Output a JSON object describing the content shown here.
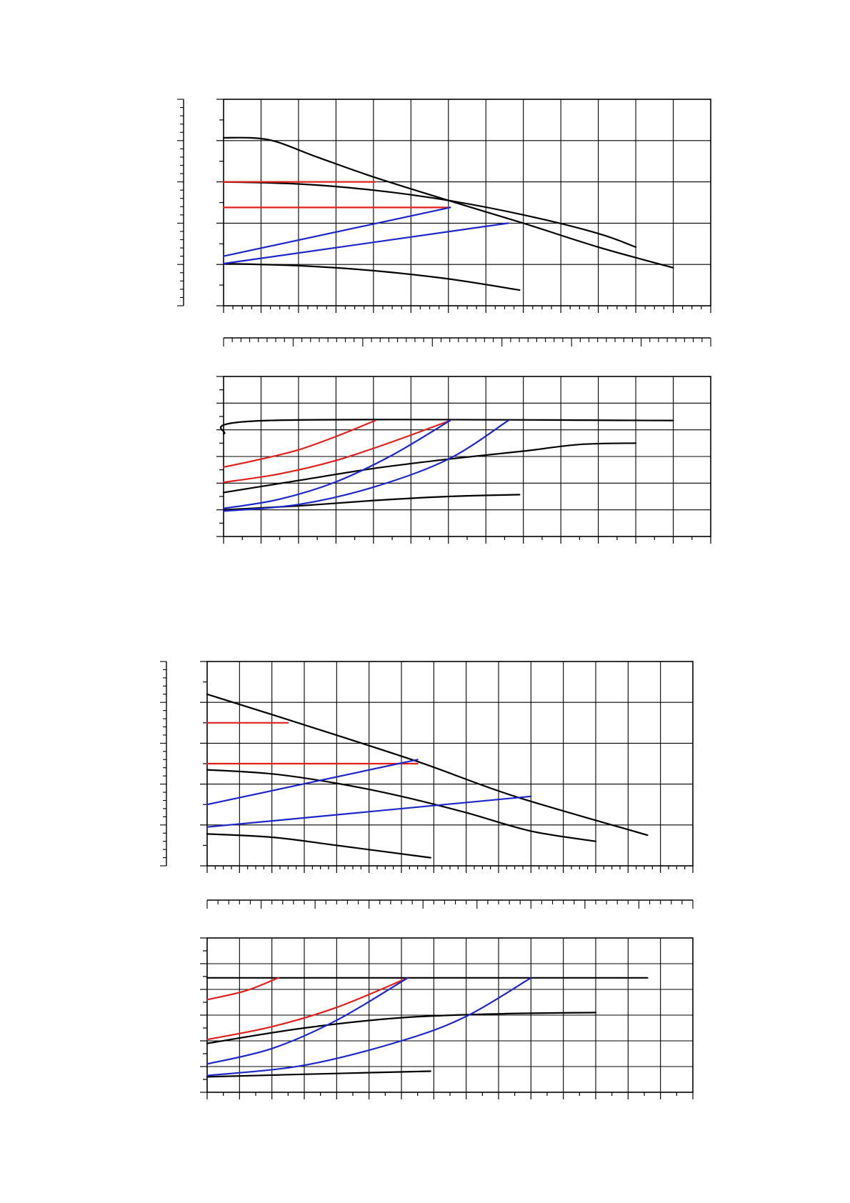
{
  "page": {
    "background": "#ffffff"
  },
  "colors": {
    "grid": "#000000",
    "red": "#e0201c",
    "blue": "#1c26c8",
    "black": "#000000"
  },
  "chart_data": [
    {
      "type": "line",
      "title": "",
      "xlim": [
        0,
        13
      ],
      "ylim": [
        -1,
        4
      ],
      "grid": true,
      "series": [
        {
          "color": "black",
          "points": [
            [
              0,
              3.07
            ],
            [
              1.2,
              3.02
            ],
            [
              2.5,
              2.6
            ],
            [
              4,
              2.12
            ],
            [
              6,
              1.55
            ],
            [
              8,
              1
            ],
            [
              10,
              0.42
            ],
            [
              12,
              -0.08
            ]
          ]
        },
        {
          "color": "black",
          "points": [
            [
              0,
              2.0
            ],
            [
              2,
              1.95
            ],
            [
              4,
              1.8
            ],
            [
              6,
              1.55
            ],
            [
              8,
              1.2
            ],
            [
              10,
              0.75
            ],
            [
              11,
              0.42
            ]
          ]
        },
        {
          "color": "black",
          "points": [
            [
              0,
              0.02
            ],
            [
              2,
              -0.03
            ],
            [
              4,
              -0.15
            ],
            [
              6,
              -0.35
            ],
            [
              7.9,
              -0.62
            ]
          ]
        },
        {
          "color": "red",
          "points": [
            [
              0,
              2.0
            ],
            [
              4.05,
              2.0
            ]
          ]
        },
        {
          "color": "red",
          "points": [
            [
              0,
              1.38
            ],
            [
              6.05,
              1.38
            ]
          ]
        },
        {
          "color": "blue",
          "points": [
            [
              0,
              0.2
            ],
            [
              6.05,
              1.38
            ]
          ]
        },
        {
          "color": "blue",
          "points": [
            [
              0,
              0.02
            ],
            [
              7.6,
              1.0
            ]
          ]
        }
      ]
    },
    {
      "type": "line",
      "title": "",
      "xlim": [
        0,
        13
      ],
      "ylim": [
        0,
        6
      ],
      "grid": true,
      "series": [
        {
          "color": "black",
          "points": [
            [
              0,
              3.85
            ],
            [
              1.2,
              4.35
            ],
            [
              12,
              4.35
            ]
          ]
        },
        {
          "color": "black",
          "points": [
            [
              0,
              1.65
            ],
            [
              2,
              2.1
            ],
            [
              4,
              2.55
            ],
            [
              6,
              2.9
            ],
            [
              8,
              3.2
            ],
            [
              9.5,
              3.45
            ],
            [
              11,
              3.5
            ]
          ]
        },
        {
          "color": "black",
          "points": [
            [
              0,
              1.0
            ],
            [
              2,
              1.15
            ],
            [
              4,
              1.35
            ],
            [
              6,
              1.5
            ],
            [
              7.9,
              1.57
            ]
          ]
        },
        {
          "color": "red",
          "points": [
            [
              0,
              2.6
            ],
            [
              1,
              2.9
            ],
            [
              2,
              3.25
            ],
            [
              3,
              3.75
            ],
            [
              4.05,
              4.35
            ]
          ]
        },
        {
          "color": "red",
          "points": [
            [
              0,
              2.03
            ],
            [
              1.5,
              2.35
            ],
            [
              3,
              2.85
            ],
            [
              4.5,
              3.55
            ],
            [
              6.05,
              4.35
            ]
          ]
        },
        {
          "color": "blue",
          "points": [
            [
              0,
              1.05
            ],
            [
              1.5,
              1.4
            ],
            [
              3,
              2.05
            ],
            [
              4.5,
              3.05
            ],
            [
              6.05,
              4.35
            ]
          ]
        },
        {
          "color": "blue",
          "points": [
            [
              0,
              0.95
            ],
            [
              2,
              1.2
            ],
            [
              4,
              1.85
            ],
            [
              6,
              2.9
            ],
            [
              7.6,
              4.35
            ]
          ]
        }
      ]
    },
    {
      "type": "line",
      "title": "",
      "xlim": [
        0,
        15
      ],
      "ylim": [
        0,
        5
      ],
      "grid": true,
      "series": [
        {
          "color": "black",
          "points": [
            [
              0,
              4.2
            ],
            [
              3,
              3.45
            ],
            [
              6.5,
              2.55
            ],
            [
              9.5,
              1.7
            ],
            [
              13.6,
              0.75
            ]
          ]
        },
        {
          "color": "black",
          "points": [
            [
              0,
              2.35
            ],
            [
              2,
              2.25
            ],
            [
              4,
              2.02
            ],
            [
              6,
              1.7
            ],
            [
              8,
              1.3
            ],
            [
              10,
              0.85
            ],
            [
              12,
              0.6
            ]
          ]
        },
        {
          "color": "black",
          "points": [
            [
              0,
              0.78
            ],
            [
              2,
              0.7
            ],
            [
              4,
              0.5
            ],
            [
              6.9,
              0.2
            ]
          ]
        },
        {
          "color": "red",
          "points": [
            [
              0,
              3.5
            ],
            [
              2.5,
              3.5
            ]
          ]
        },
        {
          "color": "red",
          "points": [
            [
              0,
              2.5
            ],
            [
              6.5,
              2.5
            ]
          ]
        },
        {
          "color": "blue",
          "points": [
            [
              0,
              1.5
            ],
            [
              6.5,
              2.6
            ]
          ]
        },
        {
          "color": "blue",
          "points": [
            [
              0,
              0.95
            ],
            [
              10,
              1.7
            ]
          ]
        }
      ]
    },
    {
      "type": "line",
      "title": "",
      "xlim": [
        0,
        15
      ],
      "ylim": [
        0,
        6
      ],
      "grid": true,
      "series": [
        {
          "color": "black",
          "points": [
            [
              0,
              4.45
            ],
            [
              13.6,
              4.45
            ]
          ]
        },
        {
          "color": "black",
          "points": [
            [
              0,
              1.9
            ],
            [
              3,
              2.5
            ],
            [
              6,
              2.9
            ],
            [
              9,
              3.05
            ],
            [
              12,
              3.1
            ]
          ]
        },
        {
          "color": "black",
          "points": [
            [
              0,
              0.6
            ],
            [
              3,
              0.7
            ],
            [
              6.9,
              0.82
            ]
          ]
        },
        {
          "color": "red",
          "points": [
            [
              0,
              3.6
            ],
            [
              1.2,
              3.95
            ],
            [
              2.2,
              4.45
            ]
          ]
        },
        {
          "color": "red",
          "points": [
            [
              0,
              2.05
            ],
            [
              2,
              2.55
            ],
            [
              4,
              3.3
            ],
            [
              6.2,
              4.45
            ]
          ]
        },
        {
          "color": "blue",
          "points": [
            [
              0,
              1.1
            ],
            [
              2,
              1.7
            ],
            [
              4,
              2.8
            ],
            [
              6.2,
              4.45
            ]
          ]
        },
        {
          "color": "blue",
          "points": [
            [
              0,
              0.65
            ],
            [
              3,
              1.05
            ],
            [
              6,
              2.0
            ],
            [
              8,
              2.95
            ],
            [
              10,
              4.45
            ]
          ]
        }
      ]
    }
  ]
}
